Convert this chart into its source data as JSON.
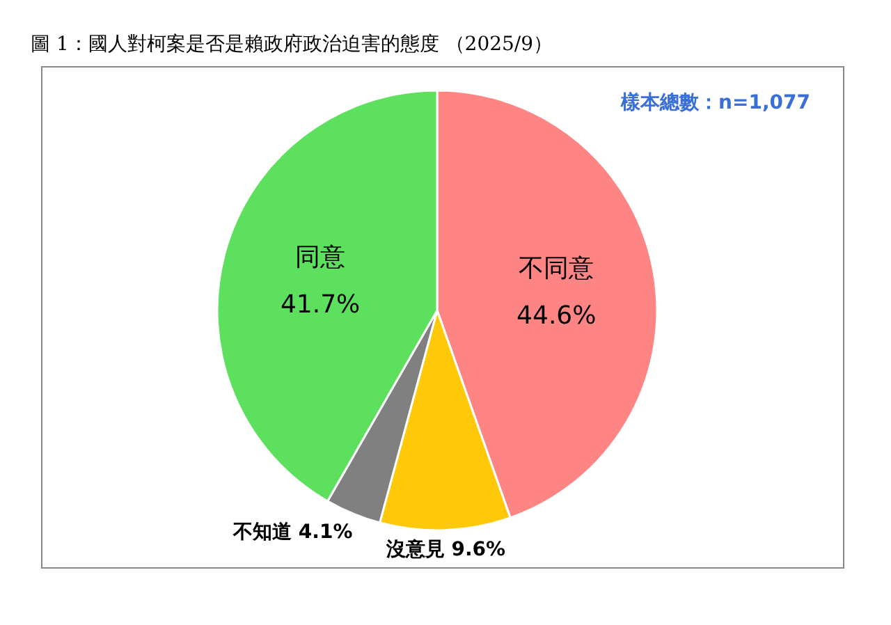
{
  "chart_data": {
    "type": "pie",
    "title": "圖 1：國人對柯案是否是賴政府政治迫害的態度 （2025/9）",
    "annotations": [
      "樣本總數：n=1,077"
    ],
    "categories": [
      "不同意",
      "沒意見",
      "不知道",
      "同意"
    ],
    "values": [
      44.6,
      9.6,
      4.1,
      41.7
    ],
    "colors": [
      "#ff8585",
      "#ffc90a",
      "#808080",
      "#5de05d"
    ],
    "value_labels": [
      "44.6%",
      "9.6%",
      "4.1%",
      "41.7%"
    ]
  }
}
